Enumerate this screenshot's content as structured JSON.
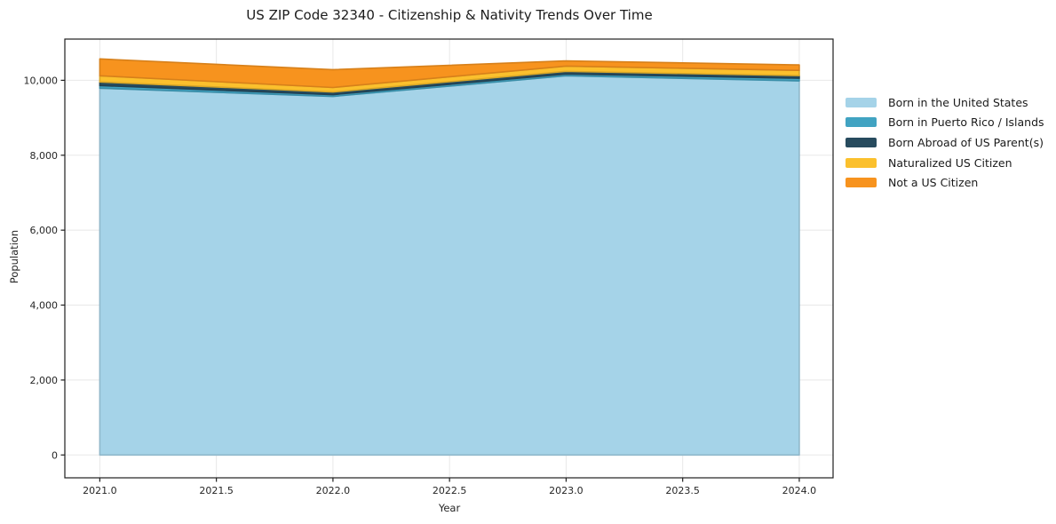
{
  "chart_data": {
    "type": "area",
    "stacked": true,
    "title": "US ZIP Code 32340 - Citizenship & Nativity Trends Over Time",
    "xlabel": "Year",
    "ylabel": "Population",
    "x": [
      2021,
      2022,
      2023,
      2024
    ],
    "series": [
      {
        "name": "Born in the United States",
        "color": "#a5d3e8",
        "values": [
          9790,
          9570,
          10120,
          9985
        ]
      },
      {
        "name": "Born in Puerto Rico / Islands",
        "color": "#41a3c2",
        "values": [
          70,
          48,
          48,
          70
        ]
      },
      {
        "name": "Born Abroad of US Parent(s)",
        "color": "#274b5e",
        "values": [
          95,
          70,
          70,
          70
        ]
      },
      {
        "name": "Naturalized US Citizen",
        "color": "#fbc02d",
        "values": [
          165,
          120,
          140,
          140
        ]
      },
      {
        "name": "Not a US Citizen",
        "color": "#f7931e",
        "values": [
          450,
          475,
          140,
          145
        ]
      }
    ],
    "xlim": [
      2020.85,
      2024.145
    ],
    "ylim": [
      -610,
      11100
    ],
    "xticks": [
      2021.0,
      2021.5,
      2022.0,
      2022.5,
      2023.0,
      2023.5,
      2024.0
    ],
    "xtick_labels": [
      "2021.0",
      "2021.5",
      "2022.0",
      "2022.5",
      "2023.0",
      "2023.5",
      "2024.0"
    ],
    "yticks": [
      0,
      2000,
      4000,
      6000,
      8000,
      10000
    ],
    "ytick_labels": [
      "0",
      "2,000",
      "4,000",
      "6,000",
      "8,000",
      "10,000"
    ],
    "grid": true,
    "legend_position": "right-outside",
    "grid_color": "#e8e8e8",
    "spine_color": "#1f1f1f",
    "background_color": "#ffffff"
  }
}
